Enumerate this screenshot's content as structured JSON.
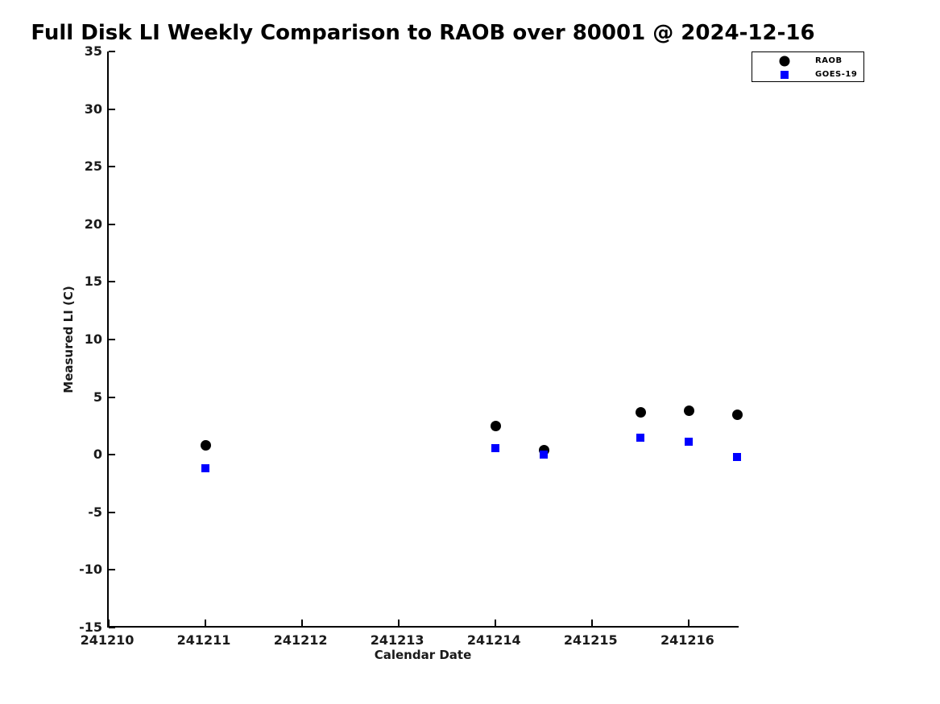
{
  "chart_data": {
    "type": "scatter",
    "title": "Full Disk LI Weekly Comparison to RAOB over 80001 @ 2024-12-16",
    "xlabel": "Calendar Date",
    "ylabel": "Measured LI (C)",
    "xlim": [
      241210,
      241216.53
    ],
    "ylim": [
      -15,
      35
    ],
    "xticks": [
      241210,
      241211,
      241212,
      241213,
      241214,
      241215,
      241216
    ],
    "yticks": [
      -15,
      -10,
      -5,
      0,
      5,
      10,
      15,
      20,
      25,
      30,
      35
    ],
    "grid": false,
    "legend": {
      "position": "top-right",
      "entries": [
        "RAOB",
        "GOES-19"
      ]
    },
    "series": [
      {
        "name": "RAOB",
        "marker": "circle",
        "color": "#000000",
        "marker_size_px": 13,
        "points": [
          [
            241211.0,
            0.8
          ],
          [
            241214.0,
            2.5
          ],
          [
            241214.5,
            0.4
          ],
          [
            241215.5,
            3.7
          ],
          [
            241216.0,
            3.8
          ],
          [
            241216.5,
            3.5
          ]
        ]
      },
      {
        "name": "GOES-19",
        "marker": "square",
        "color": "#0000ff",
        "marker_size_px": 10,
        "points": [
          [
            241211.0,
            -1.2
          ],
          [
            241214.0,
            0.6
          ],
          [
            241214.5,
            0.0
          ],
          [
            241215.5,
            1.5
          ],
          [
            241216.0,
            1.1
          ],
          [
            241216.5,
            -0.2
          ]
        ]
      }
    ]
  }
}
